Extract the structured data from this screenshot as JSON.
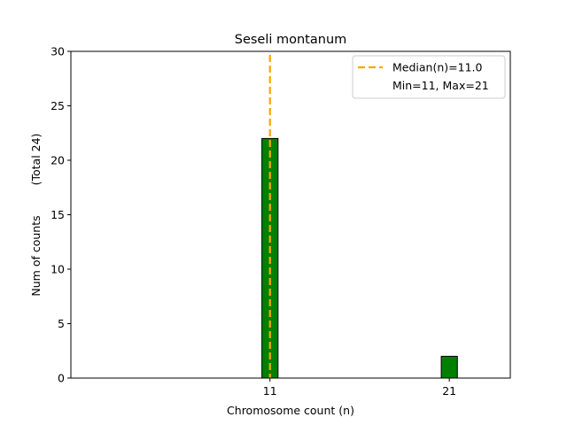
{
  "chart_data": {
    "type": "bar",
    "title": "Seseli montanum",
    "xlabel": "Chromosome count (n)",
    "ylabel": "Num of counts",
    "ylabel_extra": "(Total 24)",
    "bars": [
      {
        "x": 11,
        "value": 22
      },
      {
        "x": 21,
        "value": 2
      }
    ],
    "x_ticks": [
      11,
      21
    ],
    "y_ticks": [
      0,
      5,
      10,
      15,
      20,
      25,
      30
    ],
    "xlim": [
      -0.1,
      24.4
    ],
    "ylim": [
      0,
      30
    ],
    "median": 11.0,
    "legend": {
      "median_label": "Median(n)=11.0",
      "minmax_label": "Min=11, Max=21",
      "placement": "top-right"
    },
    "colors": {
      "bar_fill": "#008000",
      "bar_edge": "#000000",
      "median_line": "#FFA500",
      "axis": "#000000"
    },
    "grid": false
  }
}
